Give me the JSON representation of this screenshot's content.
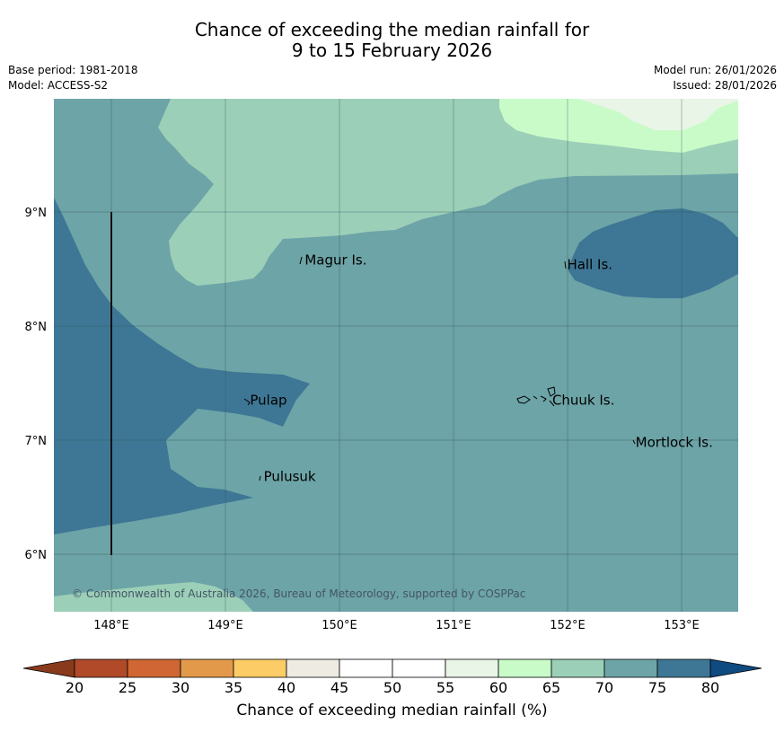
{
  "title": {
    "line1": "Chance of exceeding the median rainfall for",
    "line2": "9 to 15 February 2026"
  },
  "meta": {
    "base_period": "Base period: 1981-2018",
    "model": "Model: ACCESS-S2",
    "model_run": "Model run: 26/01/2026",
    "issued": "Issued: 28/01/2026"
  },
  "map": {
    "lon_range": [
      147.5,
      153.5
    ],
    "lat_range": [
      5.5,
      10.0
    ],
    "lon_ticks": [
      {
        "value": 148,
        "label": "148°E"
      },
      {
        "value": 149,
        "label": "149°E"
      },
      {
        "value": 150,
        "label": "150°E"
      },
      {
        "value": 151,
        "label": "151°E"
      },
      {
        "value": 152,
        "label": "152°E"
      },
      {
        "value": 153,
        "label": "153°E"
      }
    ],
    "lat_ticks": [
      {
        "value": 9,
        "label": "9°N"
      },
      {
        "value": 8,
        "label": "8°N"
      },
      {
        "value": 7,
        "label": "7°N"
      },
      {
        "value": 6,
        "label": "6°N"
      }
    ],
    "places": [
      {
        "name": "Magur Is.",
        "lon": 149.68,
        "lat": 8.58
      },
      {
        "name": "Hall Is.",
        "lon": 151.98,
        "lat": 8.54
      },
      {
        "name": "Pulap",
        "lon": 149.2,
        "lat": 7.35
      },
      {
        "name": "Chuuk Is.",
        "lon": 151.85,
        "lat": 7.35
      },
      {
        "name": "Mortlock Is.",
        "lon": 152.58,
        "lat": 6.98
      },
      {
        "name": "Pulusuk",
        "lon": 149.32,
        "lat": 6.68
      }
    ],
    "copyright": "© Commonwealth of Australia 2026, Bureau of Meteorology, supported by COSPPac"
  },
  "colorbar": {
    "label": "Chance of exceeding median rainfall (%)",
    "ticks": [
      "20",
      "25",
      "30",
      "35",
      "40",
      "45",
      "50",
      "55",
      "60",
      "65",
      "70",
      "75",
      "80"
    ],
    "under_color": "#8a3a1c",
    "over_color": "#0f4a80",
    "colors": [
      "#b04a28",
      "#cf6633",
      "#e29a4a",
      "#fccc66",
      "#eeebe3",
      "#ffffff",
      "#ffffff",
      "#e9f5e7",
      "#c9fbc9",
      "#9ccfb8",
      "#6da4a7",
      "#3e7795"
    ]
  }
}
